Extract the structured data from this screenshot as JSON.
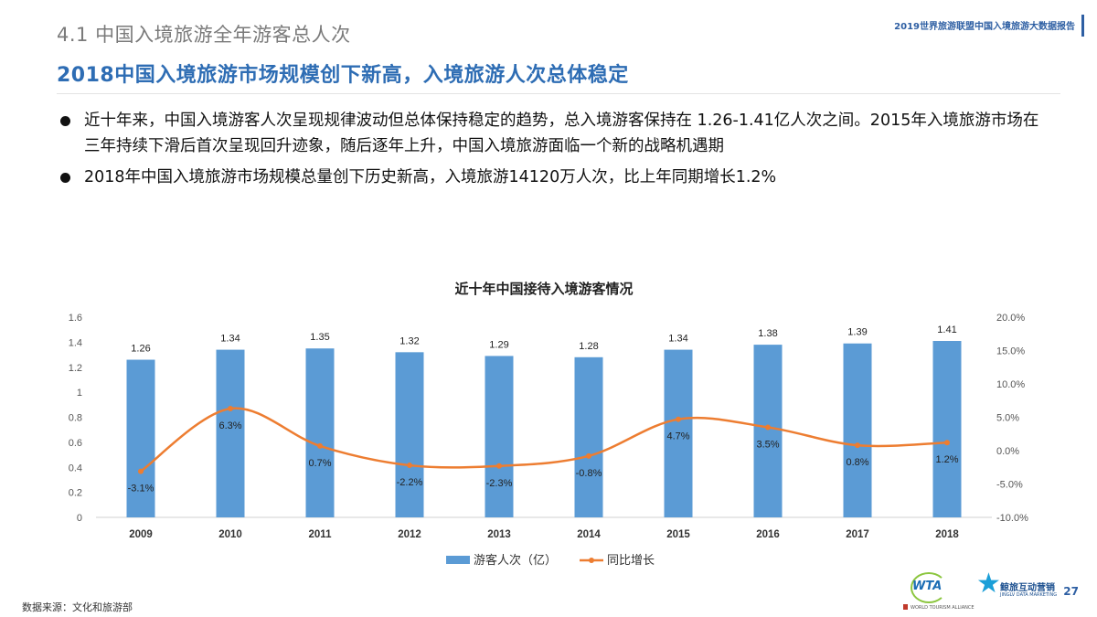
{
  "header": {
    "section_title": "4.1 中国入境旅游全年游客总人次",
    "report_tag": "2019世界旅游联盟中国入境旅游大数据报告",
    "headline": "2018中国入境旅游市场规模创下新高，入境旅游人次总体稳定"
  },
  "bullets": [
    "近十年来，中国入境游客人次呈现规律波动但总体保持稳定的趋势，总入境游客保持在 1.26-1.41亿人次之间。2015年入境旅游市场在三年持续下滑后首次呈现回升迹象，随后逐年上升，中国入境旅游面临一个新的战略机遇期",
    "2018年中国入境旅游市场规模总量创下历史新高，入境旅游14120万人次，比上年同期增长1.2%"
  ],
  "chart_data": {
    "type": "bar",
    "title": "近十年中国接待入境游客情况",
    "categories": [
      "2009",
      "2010",
      "2011",
      "2012",
      "2013",
      "2014",
      "2015",
      "2016",
      "2017",
      "2018"
    ],
    "series": [
      {
        "name": "游客人次（亿）",
        "type": "bar",
        "axis": "left",
        "color": "#5b9bd5",
        "values": [
          1.26,
          1.34,
          1.35,
          1.32,
          1.29,
          1.28,
          1.34,
          1.38,
          1.39,
          1.41
        ],
        "labels": [
          "1.26",
          "1.34",
          "1.35",
          "1.32",
          "1.29",
          "1.28",
          "1.34",
          "1.38",
          "1.39",
          "1.41"
        ]
      },
      {
        "name": "同比增长",
        "type": "line",
        "axis": "right",
        "color": "#ed7d31",
        "values": [
          -3.1,
          6.3,
          0.7,
          -2.2,
          -2.3,
          -0.8,
          4.7,
          3.5,
          0.8,
          1.2
        ],
        "labels": [
          "-3.1%",
          "6.3%",
          "0.7%",
          "-2.2%",
          "-2.3%",
          "-0.8%",
          "4.7%",
          "3.5%",
          "0.8%",
          "1.2%"
        ]
      }
    ],
    "y_left": {
      "min": 0,
      "max": 1.6,
      "ticks": [
        "0",
        "0.2",
        "0.4",
        "0.6",
        "0.8",
        "1",
        "1.2",
        "1.4",
        "1.6"
      ]
    },
    "y_right": {
      "min": -10,
      "max": 20,
      "ticks": [
        "-10.0%",
        "-5.0%",
        "0.0%",
        "5.0%",
        "10.0%",
        "15.0%",
        "20.0%"
      ]
    },
    "grid": false,
    "legend": "bottom"
  },
  "footer": {
    "source": "数据来源：文化和旅游部",
    "page_number": "27",
    "logo_wta_text": "WTA",
    "logo_wta_sub": "WORLD TOURISM ALLIANCE",
    "logo_jl_name": "鲸旅互动营销",
    "logo_jl_en": "JINGLV DATA MARKETING"
  },
  "colors": {
    "accent": "#2e6db4",
    "bar": "#5b9bd5",
    "line": "#ed7d31"
  }
}
